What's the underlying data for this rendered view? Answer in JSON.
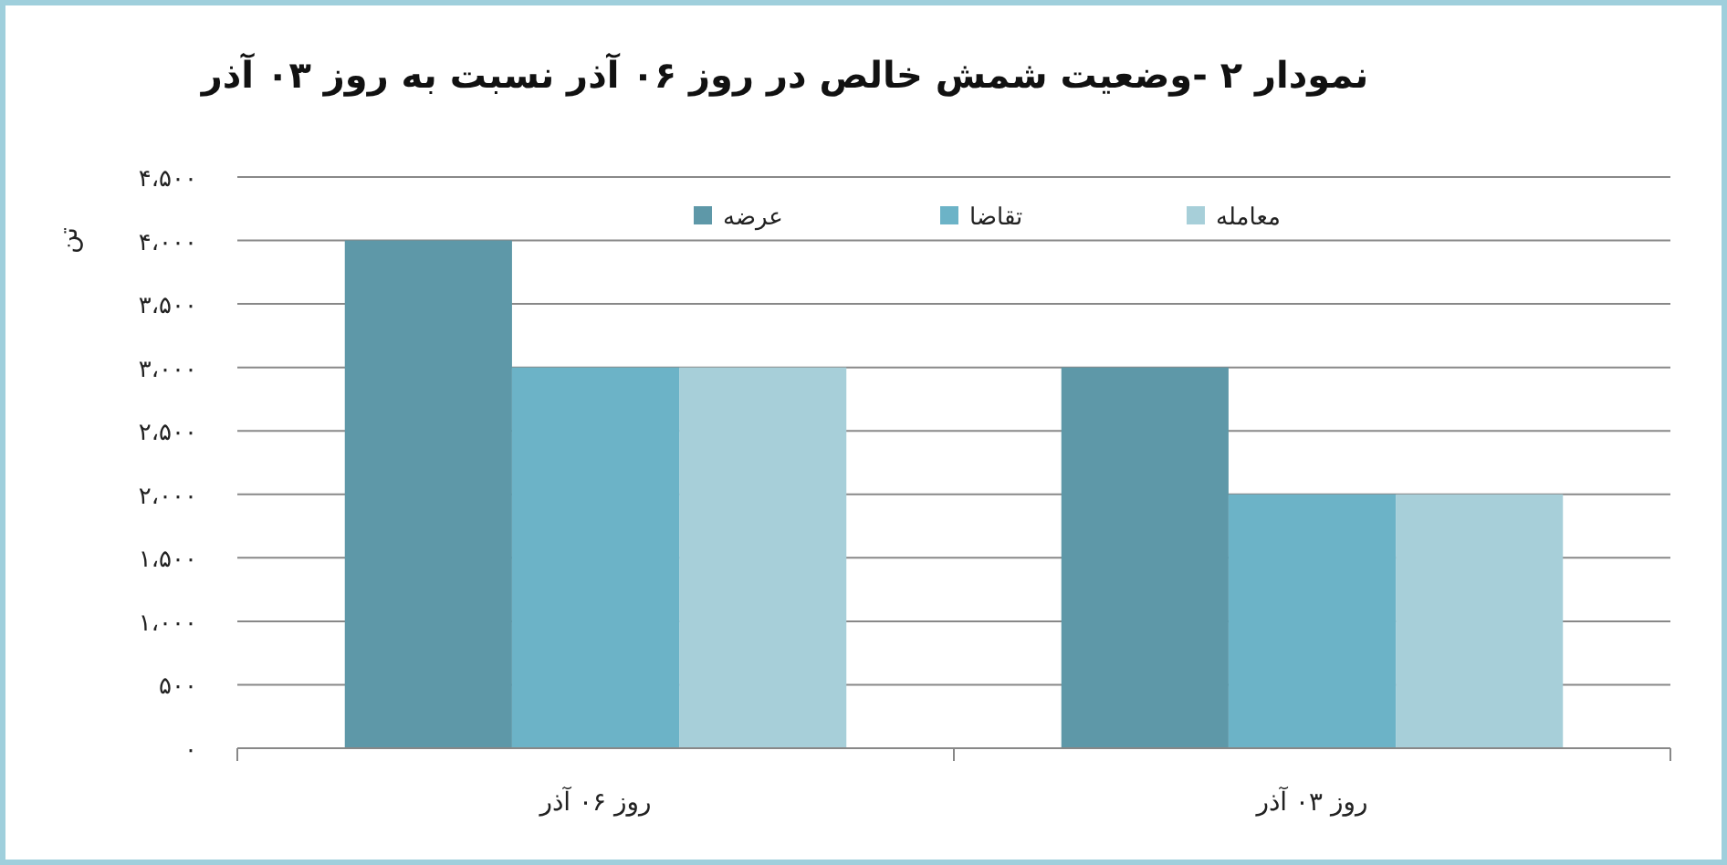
{
  "chart_data": {
    "type": "bar",
    "title": "نمودار ۲ -وضعیت شمش خالص در روز ۰۶ آذر نسبت به روز ۰۳ آذر",
    "ylabel": "تن",
    "categories": [
      "روز ۰۶ آذر",
      "روز ۰۳ آذر"
    ],
    "series": [
      {
        "name": "عرضه",
        "color": "#5e98a8",
        "values": [
          4000,
          3000
        ]
      },
      {
        "name": "تقاضا",
        "color": "#6cb3c7",
        "values": [
          3000,
          2000
        ]
      },
      {
        "name": "معامله",
        "color": "#a7cfd9",
        "values": [
          3000,
          2000
        ]
      }
    ],
    "ylim": [
      0,
      4500
    ],
    "yticks": [
      {
        "value": 0,
        "label": "۰"
      },
      {
        "value": 500,
        "label": "۵۰۰"
      },
      {
        "value": 1000,
        "label": "۱،۰۰۰"
      },
      {
        "value": 1500,
        "label": "۱،۵۰۰"
      },
      {
        "value": 2000,
        "label": "۲،۰۰۰"
      },
      {
        "value": 2500,
        "label": "۲،۵۰۰"
      },
      {
        "value": 3000,
        "label": "۳،۰۰۰"
      },
      {
        "value": 3500,
        "label": "۳،۵۰۰"
      },
      {
        "value": 4000,
        "label": "۴،۰۰۰"
      },
      {
        "value": 4500,
        "label": "۴،۵۰۰"
      }
    ],
    "grid": "y",
    "legend": "top"
  }
}
